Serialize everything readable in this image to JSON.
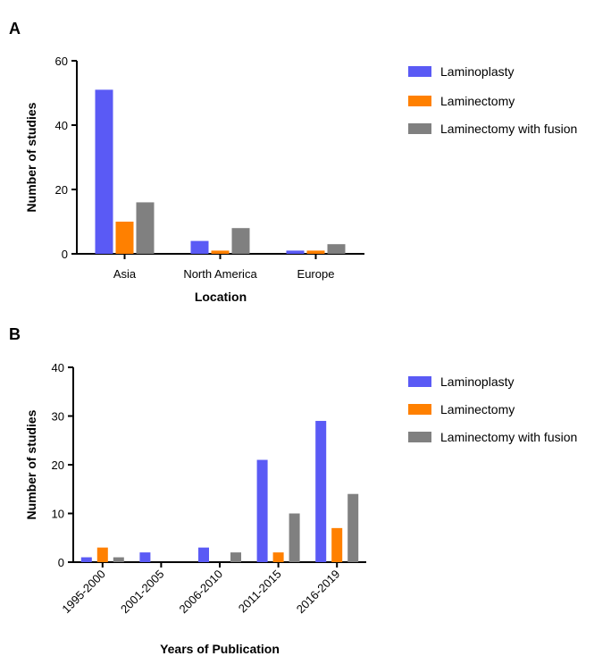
{
  "panels": [
    {
      "letter": "A"
    },
    {
      "letter": "B"
    }
  ],
  "colors": {
    "Laminoplasty": "#5a5af5",
    "Laminectomy": "#ff8000",
    "Laminectomy with fusion": "#808080"
  },
  "chart_data": [
    {
      "type": "bar",
      "title": "",
      "xlabel": "Location",
      "ylabel": "Number of studies",
      "ylim": [
        0,
        60
      ],
      "yticks": [
        0,
        20,
        40,
        60
      ],
      "categories": [
        "Asia",
        "North America",
        "Europe"
      ],
      "series": [
        {
          "name": "Laminoplasty",
          "values": [
            51,
            4,
            1
          ]
        },
        {
          "name": "Laminectomy",
          "values": [
            10,
            1,
            1
          ]
        },
        {
          "name": "Laminectomy with fusion",
          "values": [
            16,
            8,
            3
          ]
        }
      ],
      "legend_position": "right",
      "grid": false
    },
    {
      "type": "bar",
      "title": "",
      "xlabel": "Years of Publication",
      "ylabel": "Number of studies",
      "ylim": [
        0,
        40
      ],
      "yticks": [
        0,
        10,
        20,
        30,
        40
      ],
      "categories": [
        "1995-2000",
        "2001-2005",
        "2006-2010",
        "2011-2015",
        "2016-2019"
      ],
      "series": [
        {
          "name": "Laminoplasty",
          "values": [
            1,
            2,
            3,
            21,
            29
          ]
        },
        {
          "name": "Laminectomy",
          "values": [
            3,
            0,
            0,
            2,
            7
          ]
        },
        {
          "name": "Laminectomy with fusion",
          "values": [
            1,
            0,
            2,
            10,
            14
          ]
        }
      ],
      "legend_position": "right",
      "grid": false
    }
  ]
}
